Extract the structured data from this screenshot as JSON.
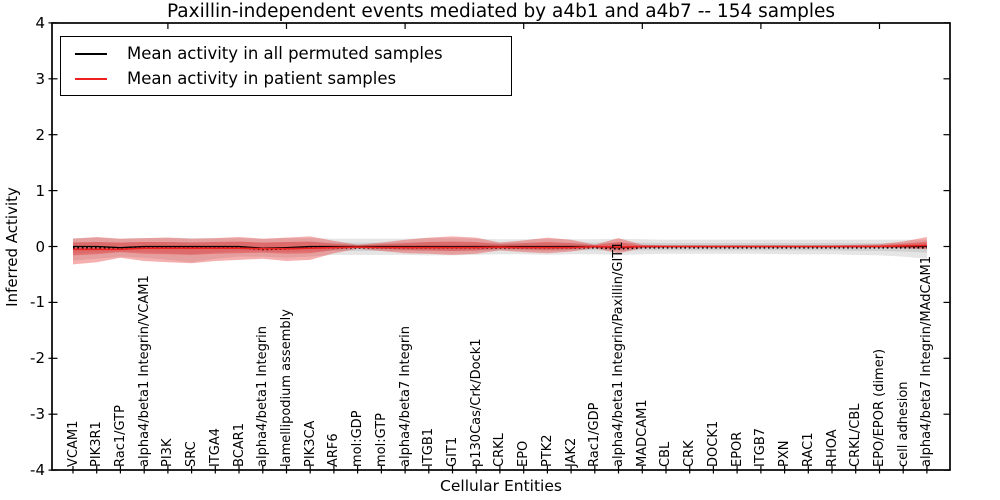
{
  "figure": {
    "title": "Paxillin-independent events mediated by a4b1 and a4b7 -- 154 samples",
    "xlabel": "Cellular Entities",
    "ylabel": "Inferred Activity"
  },
  "legend": {
    "items": [
      {
        "label": "Mean activity in all permuted samples",
        "color": "#000000"
      },
      {
        "label": "Mean activity in patient samples",
        "color": "#ee2020"
      }
    ]
  },
  "chart_data": {
    "type": "line",
    "title": "Paxillin-independent events mediated by a4b1 and a4b7 -- 154 samples",
    "xlabel": "Cellular Entities",
    "ylabel": "Inferred Activity",
    "ylim": [
      -4,
      4
    ],
    "yticks": [
      "4",
      "3",
      "2",
      "1",
      "0",
      "-1",
      "-2",
      "-3",
      "-4"
    ],
    "ytick_values": [
      4,
      3,
      2,
      1,
      0,
      -1,
      -2,
      -3,
      -4
    ],
    "grid": false,
    "legend_position": "upper left",
    "top_major_tick_indices": [
      4,
      9,
      14,
      19,
      24,
      29,
      34
    ],
    "categories": [
      "VCAM1",
      "PIK3R1",
      "Rac1/GTP",
      "alpha4/beta1 Integrin/VCAM1",
      "PI3K",
      "SRC",
      "ITGA4",
      "BCAR1",
      "alpha4/beta1 Integrin",
      "lamellipodium assembly",
      "PIK3CA",
      "ARF6",
      "mol:GDP",
      "mol:GTP",
      "alpha4/beta7 Integrin",
      "ITGB1",
      "GIT1",
      "p130Cas/Crk/Dock1",
      "CRKL",
      "EPO",
      "PTK2",
      "JAK2",
      "Rac1/GDP",
      "alpha4/beta1 Integrin/Paxillin/GIT1",
      "MADCAM1",
      "CBL",
      "CRK",
      "DOCK1",
      "EPOR",
      "ITGB7",
      "PXN",
      "RAC1",
      "RHOA",
      "CRKL/CBL",
      "EPO/EPOR (dimer)",
      "cell adhesion",
      "alpha4/beta7 Integrin/MAdCAM1"
    ],
    "series": [
      {
        "name": "Mean activity in all permuted samples",
        "color": "#000000",
        "line_style": "solid-with-dotted-overlay",
        "values": [
          0,
          0,
          -0.02,
          0,
          0,
          0,
          0,
          0,
          -0.03,
          -0.02,
          0,
          0,
          0,
          0,
          0,
          0,
          0,
          0,
          0,
          0,
          0,
          0,
          0,
          -0.02,
          0,
          0,
          0,
          0,
          0,
          0,
          0,
          0,
          0,
          0,
          0,
          0,
          0
        ]
      },
      {
        "name": "Mean activity in patient samples",
        "color": "#ee2020",
        "line_style": "solid",
        "values": [
          -0.05,
          -0.05,
          -0.05,
          -0.03,
          -0.03,
          -0.03,
          -0.03,
          -0.03,
          -0.04,
          -0.04,
          -0.03,
          -0.02,
          -0.01,
          -0.02,
          -0.02,
          -0.02,
          -0.02,
          -0.02,
          -0.01,
          -0.02,
          -0.02,
          -0.02,
          0,
          -0.01,
          0,
          0,
          0,
          0,
          0,
          0,
          0,
          0,
          0,
          0,
          0,
          0.01,
          0.02
        ]
      }
    ],
    "bands": [
      {
        "name": "permuted-outer",
        "color": "rgba(0,0,0,0.10)",
        "upper": [
          0.15,
          0.16,
          0.14,
          0.15,
          0.16,
          0.15,
          0.15,
          0.15,
          0.14,
          0.15,
          0.15,
          0.14,
          0.14,
          0.14,
          0.14,
          0.15,
          0.15,
          0.14,
          0.13,
          0.13,
          0.14,
          0.13,
          0.13,
          0.14,
          0.13,
          0.12,
          0.12,
          0.12,
          0.12,
          0.12,
          0.12,
          0.12,
          0.12,
          0.12,
          0.12,
          0.12,
          0.12
        ],
        "lower": [
          -0.25,
          -0.22,
          -0.18,
          -0.2,
          -0.24,
          -0.28,
          -0.22,
          -0.18,
          -0.18,
          -0.2,
          -0.18,
          -0.15,
          -0.15,
          -0.15,
          -0.15,
          -0.16,
          -0.16,
          -0.15,
          -0.14,
          -0.14,
          -0.15,
          -0.14,
          -0.14,
          -0.15,
          -0.14,
          -0.13,
          -0.13,
          -0.13,
          -0.13,
          -0.13,
          -0.14,
          -0.14,
          -0.14,
          -0.15,
          -0.16,
          -0.18,
          -0.22
        ]
      },
      {
        "name": "permuted-inner",
        "color": "rgba(0,0,0,0.09)",
        "upper": [
          0.08,
          0.08,
          0.07,
          0.08,
          0.08,
          0.08,
          0.08,
          0.08,
          0.07,
          0.08,
          0.08,
          0.07,
          0.07,
          0.07,
          0.07,
          0.08,
          0.08,
          0.07,
          0.07,
          0.07,
          0.07,
          0.07,
          0.07,
          0.07,
          0.07,
          0.06,
          0.06,
          0.06,
          0.06,
          0.06,
          0.06,
          0.06,
          0.06,
          0.06,
          0.06,
          0.06,
          0.06
        ],
        "lower": [
          -0.13,
          -0.11,
          -0.09,
          -0.1,
          -0.12,
          -0.14,
          -0.11,
          -0.09,
          -0.09,
          -0.1,
          -0.09,
          -0.08,
          -0.08,
          -0.08,
          -0.08,
          -0.08,
          -0.08,
          -0.08,
          -0.07,
          -0.07,
          -0.08,
          -0.07,
          -0.07,
          -0.08,
          -0.07,
          -0.07,
          -0.07,
          -0.07,
          -0.07,
          -0.07,
          -0.07,
          -0.07,
          -0.07,
          -0.08,
          -0.08,
          -0.09,
          -0.11
        ]
      },
      {
        "name": "patient-outer",
        "color": "rgba(228,45,45,0.38)",
        "upper": [
          0.14,
          0.17,
          0.14,
          0.15,
          0.16,
          0.14,
          0.15,
          0.17,
          0.14,
          0.16,
          0.18,
          0.1,
          0.03,
          0.07,
          0.12,
          0.16,
          0.18,
          0.16,
          0.07,
          0.11,
          0.16,
          0.12,
          0.03,
          0.15,
          0.03,
          0.02,
          0.02,
          0.02,
          0.02,
          0.02,
          0.02,
          0.02,
          0.02,
          0.03,
          0.04,
          0.09,
          0.17
        ],
        "lower": [
          -0.32,
          -0.28,
          -0.2,
          -0.26,
          -0.28,
          -0.3,
          -0.26,
          -0.24,
          -0.22,
          -0.26,
          -0.24,
          -0.12,
          -0.04,
          -0.08,
          -0.12,
          -0.13,
          -0.15,
          -0.13,
          -0.07,
          -0.1,
          -0.12,
          -0.09,
          -0.03,
          -0.12,
          -0.03,
          -0.02,
          -0.02,
          -0.02,
          -0.02,
          -0.02,
          -0.02,
          -0.02,
          -0.02,
          -0.02,
          -0.02,
          -0.03,
          -0.05
        ]
      },
      {
        "name": "patient-inner",
        "color": "rgba(228,45,45,0.38)",
        "upper": [
          0.07,
          0.08,
          0.07,
          0.08,
          0.08,
          0.07,
          0.08,
          0.09,
          0.07,
          0.08,
          0.09,
          0.05,
          0.02,
          0.04,
          0.06,
          0.08,
          0.09,
          0.08,
          0.04,
          0.06,
          0.08,
          0.06,
          0.02,
          0.08,
          0.015,
          0.01,
          0.01,
          0.01,
          0.01,
          0.01,
          0.01,
          0.01,
          0.01,
          0.015,
          0.02,
          0.05,
          0.09
        ],
        "lower": [
          -0.16,
          -0.14,
          -0.1,
          -0.13,
          -0.14,
          -0.15,
          -0.13,
          -0.12,
          -0.11,
          -0.13,
          -0.12,
          -0.06,
          -0.02,
          -0.04,
          -0.06,
          -0.07,
          -0.08,
          -0.07,
          -0.04,
          -0.05,
          -0.06,
          -0.05,
          -0.02,
          -0.06,
          -0.015,
          -0.01,
          -0.01,
          -0.01,
          -0.01,
          -0.01,
          -0.01,
          -0.01,
          -0.01,
          -0.01,
          -0.01,
          -0.02,
          -0.03
        ]
      }
    ]
  }
}
